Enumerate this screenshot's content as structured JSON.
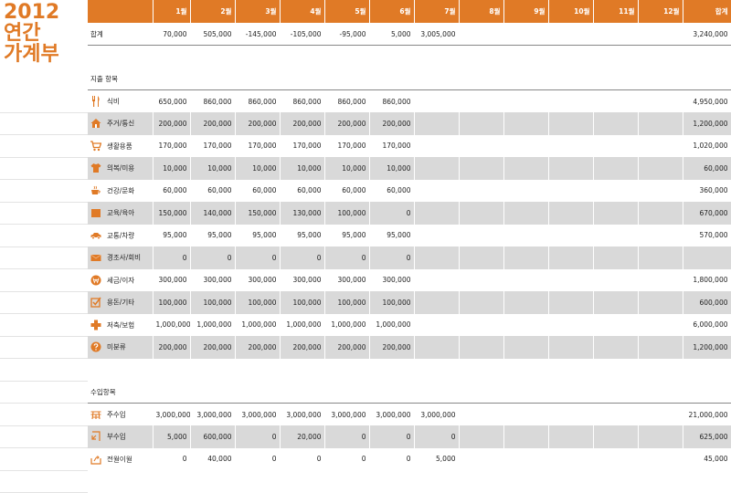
{
  "title": {
    "year": "2012",
    "line1": "연간",
    "line2": "가계부"
  },
  "accent": "#e07a26",
  "months": [
    "1월",
    "2월",
    "3월",
    "4월",
    "5월",
    "6월",
    "7월",
    "8월",
    "9월",
    "10월",
    "11월",
    "12월"
  ],
  "total_label": "합계",
  "summary": {
    "label": "합계",
    "values": [
      "70,000",
      "505,000",
      "-145,000",
      "-105,000",
      "-95,000",
      "5,000",
      "3,005,000",
      "",
      "",
      "",
      "",
      ""
    ],
    "total": "3,240,000"
  },
  "expense_section": "지출 항목",
  "expenses": [
    {
      "icon": "utensils-icon",
      "label": "식비",
      "values": [
        "650,000",
        "860,000",
        "860,000",
        "860,000",
        "860,000",
        "860,000",
        "",
        "",
        "",
        "",
        "",
        ""
      ],
      "total": "4,950,000"
    },
    {
      "icon": "house-icon",
      "label": "주거/통신",
      "values": [
        "200,000",
        "200,000",
        "200,000",
        "200,000",
        "200,000",
        "200,000",
        "",
        "",
        "",
        "",
        "",
        ""
      ],
      "total": "1,200,000"
    },
    {
      "icon": "cart-icon",
      "label": "생활용품",
      "values": [
        "170,000",
        "170,000",
        "170,000",
        "170,000",
        "170,000",
        "170,000",
        "",
        "",
        "",
        "",
        "",
        ""
      ],
      "total": "1,020,000"
    },
    {
      "icon": "shirt-icon",
      "label": "의복/미용",
      "values": [
        "10,000",
        "10,000",
        "10,000",
        "10,000",
        "10,000",
        "10,000",
        "",
        "",
        "",
        "",
        "",
        ""
      ],
      "total": "60,000"
    },
    {
      "icon": "cup-icon",
      "label": "건강/문화",
      "values": [
        "60,000",
        "60,000",
        "60,000",
        "60,000",
        "60,000",
        "60,000",
        "",
        "",
        "",
        "",
        "",
        ""
      ],
      "total": "360,000"
    },
    {
      "icon": "book-icon",
      "label": "교육/육아",
      "values": [
        "150,000",
        "140,000",
        "150,000",
        "130,000",
        "100,000",
        "0",
        "",
        "",
        "",
        "",
        "",
        ""
      ],
      "total": "670,000"
    },
    {
      "icon": "car-icon",
      "label": "교통/차량",
      "values": [
        "95,000",
        "95,000",
        "95,000",
        "95,000",
        "95,000",
        "95,000",
        "",
        "",
        "",
        "",
        "",
        ""
      ],
      "total": "570,000"
    },
    {
      "icon": "envelope-icon",
      "label": "경조사/회비",
      "values": [
        "0",
        "0",
        "0",
        "0",
        "0",
        "0",
        "",
        "",
        "",
        "",
        "",
        ""
      ],
      "total": ""
    },
    {
      "icon": "won-icon",
      "label": "세금/이자",
      "values": [
        "300,000",
        "300,000",
        "300,000",
        "300,000",
        "300,000",
        "300,000",
        "",
        "",
        "",
        "",
        "",
        ""
      ],
      "total": "1,800,000"
    },
    {
      "icon": "checkbox-icon",
      "label": "용돈/기타",
      "values": [
        "100,000",
        "100,000",
        "100,000",
        "100,000",
        "100,000",
        "100,000",
        "",
        "",
        "",
        "",
        "",
        ""
      ],
      "total": "600,000"
    },
    {
      "icon": "plus-icon",
      "label": "저축/보험",
      "values": [
        "1,000,000",
        "1,000,000",
        "1,000,000",
        "1,000,000",
        "1,000,000",
        "1,000,000",
        "",
        "",
        "",
        "",
        "",
        ""
      ],
      "total": "6,000,000"
    },
    {
      "icon": "question-icon",
      "label": "미분류",
      "values": [
        "200,000",
        "200,000",
        "200,000",
        "200,000",
        "200,000",
        "200,000",
        "",
        "",
        "",
        "",
        "",
        ""
      ],
      "total": "1,200,000"
    }
  ],
  "income_section": "수입항목",
  "incomes": [
    {
      "icon": "main-income-icon",
      "label": "주수입",
      "values": [
        "3,000,000",
        "3,000,000",
        "3,000,000",
        "3,000,000",
        "3,000,000",
        "3,000,000",
        "3,000,000",
        "",
        "",
        "",
        "",
        ""
      ],
      "total": "21,000,000"
    },
    {
      "icon": "side-income-icon",
      "label": "부수입",
      "values": [
        "5,000",
        "600,000",
        "0",
        "20,000",
        "0",
        "0",
        "0",
        "",
        "",
        "",
        "",
        ""
      ],
      "total": "625,000"
    },
    {
      "icon": "carryover-icon",
      "label": "전월이월",
      "values": [
        "0",
        "40,000",
        "0",
        "0",
        "0",
        "0",
        "5,000",
        "",
        "",
        "",
        "",
        ""
      ],
      "total": "45,000"
    }
  ]
}
